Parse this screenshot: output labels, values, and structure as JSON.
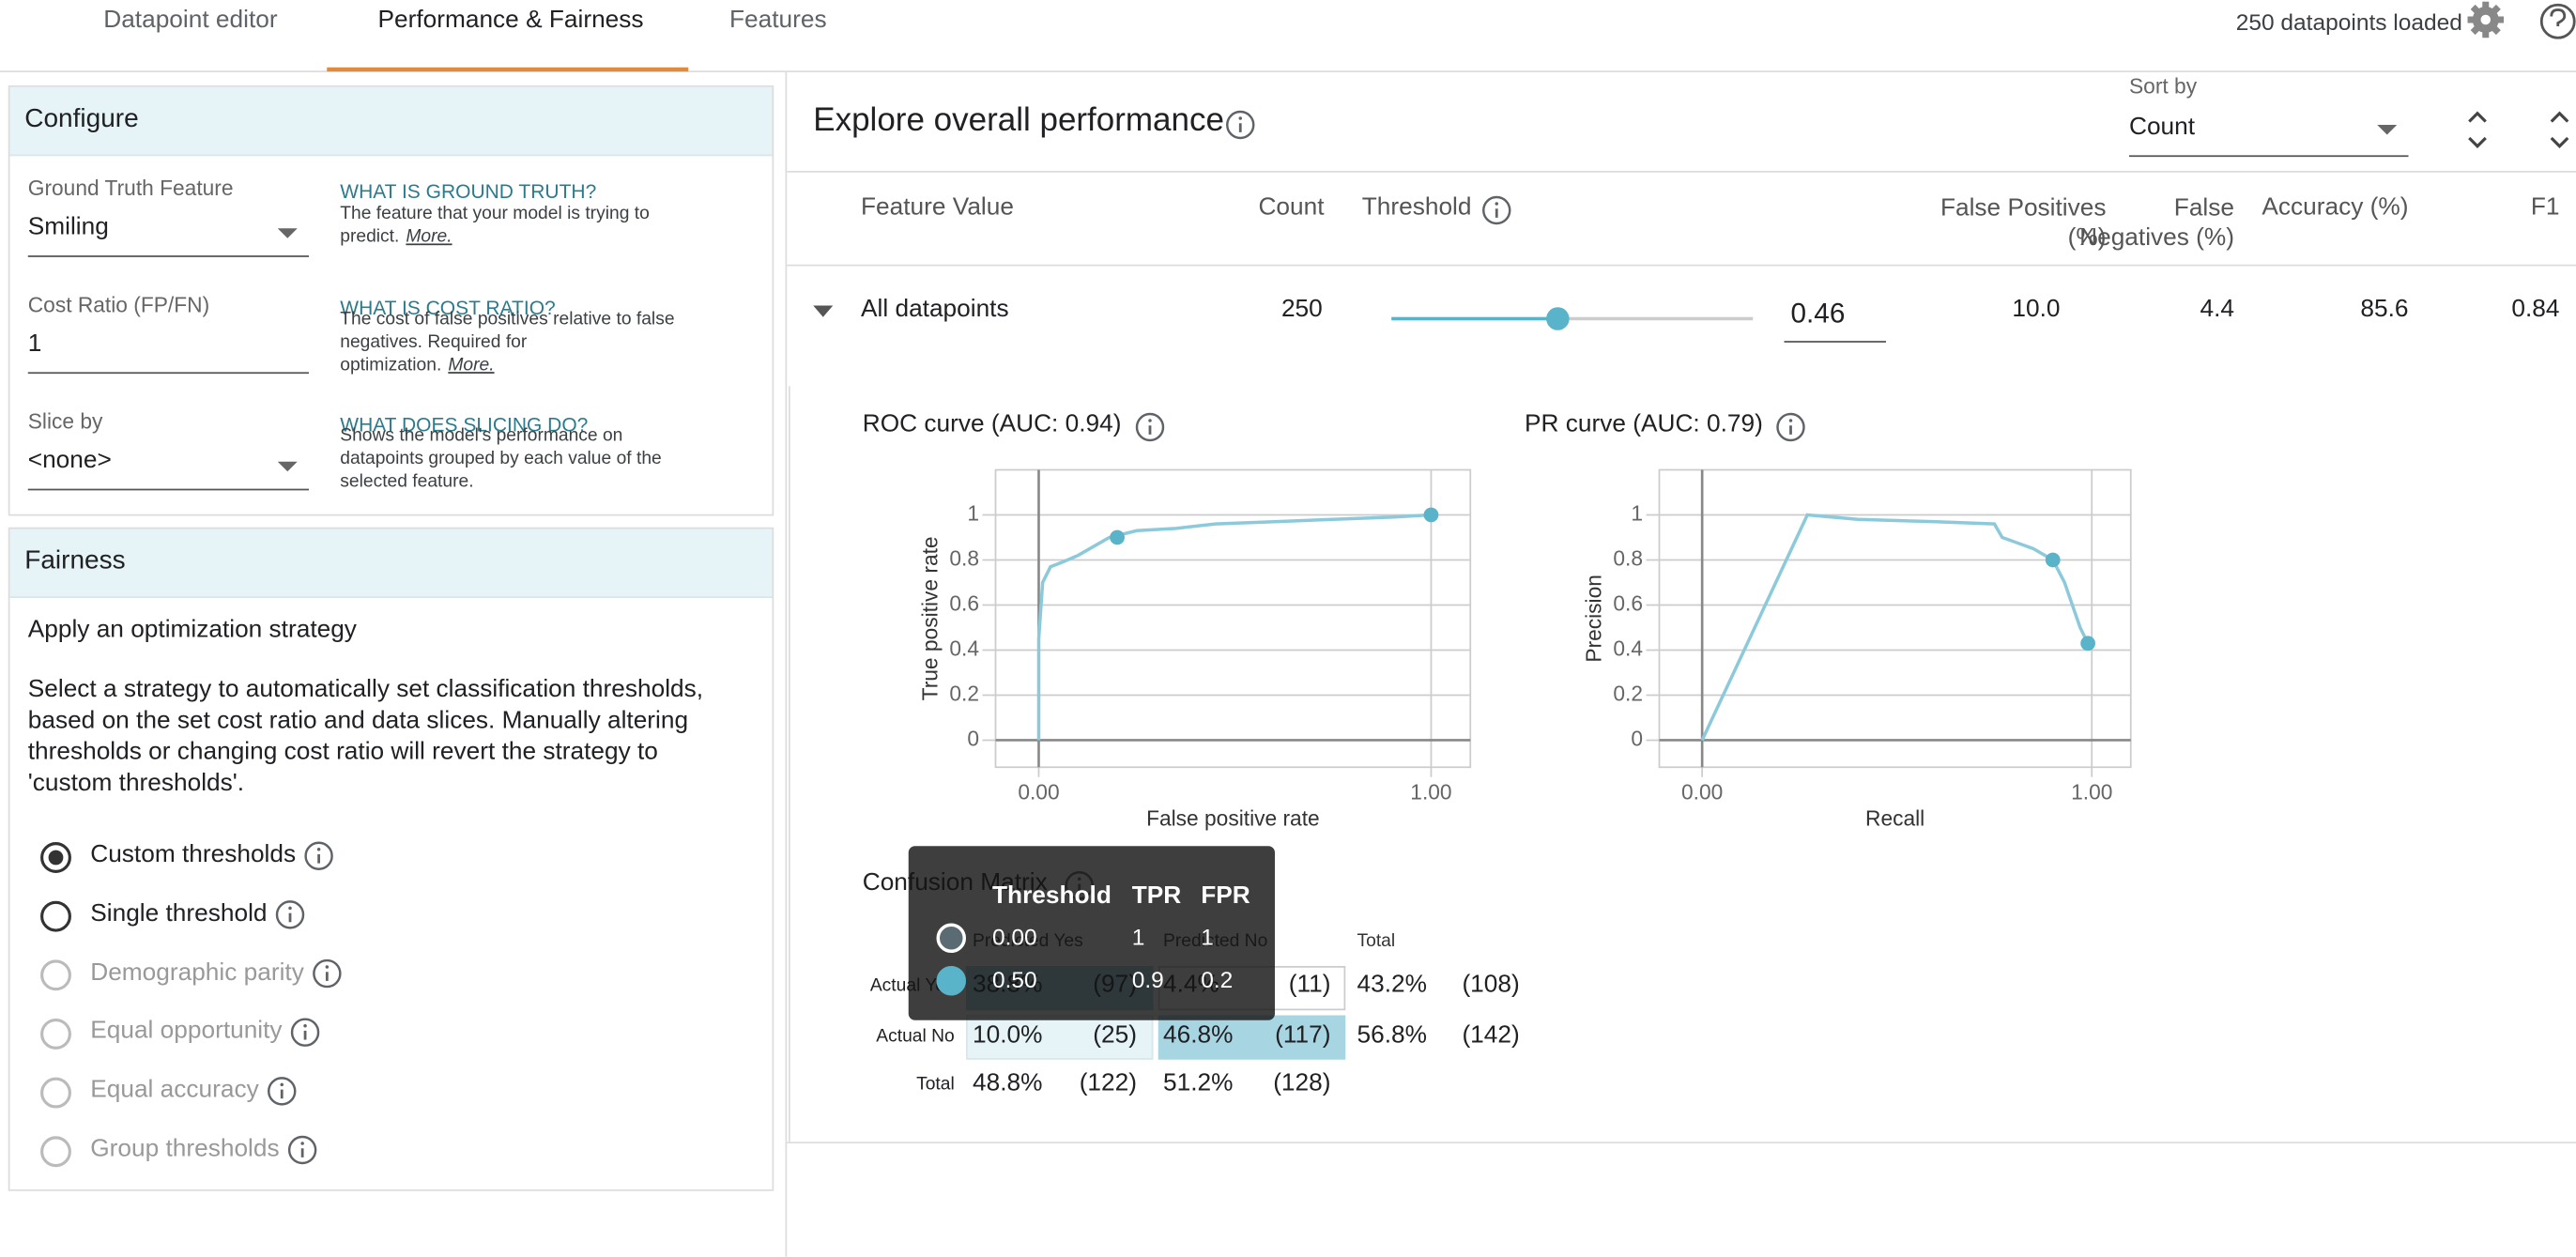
{
  "tabs": [
    "Datapoint editor",
    "Performance & Fairness",
    "Features"
  ],
  "status": "250 datapoints loaded",
  "configure": {
    "title": "Configure",
    "fields": [
      {
        "label": "Ground Truth Feature",
        "value": "Smiling",
        "help_title": "WHAT IS GROUND TRUTH?",
        "help_text": "The feature that your model is trying to predict.",
        "help_link": "More."
      },
      {
        "label": "Cost Ratio (FP/FN)",
        "value": "1",
        "help_title": "WHAT IS COST RATIO?",
        "help_text": "The cost of false positives relative to false negatives. Required for optimization.",
        "help_link": "More."
      },
      {
        "label": "Slice by",
        "value": "<none>",
        "help_title": "WHAT DOES SLICING DO?",
        "help_text": "Shows the model's performance on datapoints grouped by each value of the selected feature."
      }
    ]
  },
  "fairness": {
    "title": "Fairness",
    "heading": "Apply an optimization strategy",
    "description": "Select a strategy to automatically set classification thresholds, based on the set cost ratio and data slices. Manually altering thresholds or changing cost ratio will revert the strategy to 'custom thresholds'.",
    "options": [
      {
        "label": "Custom thresholds",
        "state": "selected"
      },
      {
        "label": "Single threshold",
        "state": "enabled"
      },
      {
        "label": "Demographic parity",
        "state": "disabled"
      },
      {
        "label": "Equal opportunity",
        "state": "disabled"
      },
      {
        "label": "Equal accuracy",
        "state": "disabled"
      },
      {
        "label": "Group thresholds",
        "state": "disabled"
      }
    ]
  },
  "performance": {
    "title": "Explore overall performance",
    "sort_label": "Sort by",
    "sort_value": "Count",
    "columns": [
      "Feature Value",
      "Count",
      "Threshold",
      "False Positives (%)",
      "False Negatives (%)",
      "Accuracy (%)",
      "F1"
    ],
    "row": {
      "feature_value": "All datapoints",
      "count": 250,
      "threshold": 0.46,
      "false_positives": "10.0",
      "false_negatives": "4.4",
      "accuracy": "85.6",
      "f1": "0.84"
    }
  },
  "roc": {
    "title": "ROC curve (AUC: 0.94)",
    "x_label": "False positive rate",
    "y_label": "True positive rate",
    "xlim": [
      -0.11,
      1.1
    ],
    "ylim": [
      -0.12,
      1.2
    ],
    "xticks": [
      {
        "value": 0,
        "label": "0.00"
      },
      {
        "value": 1,
        "label": "1.00"
      }
    ],
    "yticks": [
      0,
      0.2,
      0.4,
      0.6,
      0.8,
      1
    ],
    "x": [
      0,
      0,
      0.01,
      0.03,
      0.06,
      0.1,
      0.15,
      0.18,
      0.25,
      0.35,
      0.45,
      0.6,
      0.75,
      0.9,
      1
    ],
    "y": [
      0,
      0.45,
      0.7,
      0.77,
      0.79,
      0.82,
      0.87,
      0.9,
      0.93,
      0.94,
      0.96,
      0.97,
      0.98,
      0.99,
      1
    ]
  },
  "pr": {
    "title": "PR curve (AUC: 0.79)",
    "x_label": "Recall",
    "y_label": "Precision",
    "xlim": [
      -0.11,
      1.1
    ],
    "ylim": [
      -0.12,
      1.2
    ],
    "xticks": [
      {
        "value": 0,
        "label": "0.00"
      },
      {
        "value": 1,
        "label": "1.00"
      }
    ],
    "yticks": [
      0,
      0.2,
      0.4,
      0.6,
      0.8,
      1
    ],
    "x": [
      0,
      0.27,
      0.4,
      0.6,
      0.75,
      0.77,
      0.85,
      0.9,
      0.93,
      0.95,
      0.97,
      0.99
    ],
    "y": [
      0,
      1,
      0.98,
      0.97,
      0.96,
      0.9,
      0.85,
      0.8,
      0.7,
      0.6,
      0.5,
      0.43
    ],
    "markers": {
      "x": [
        0.9,
        0.99
      ],
      "y": [
        0.8,
        0.43
      ]
    }
  },
  "confusion_matrix": {
    "title": "Confusion Matrix",
    "columns": [
      "Predicted Yes",
      "Predicted No",
      "Total"
    ],
    "rows": [
      {
        "label": "Actual Yes",
        "cells": [
          "38.8%",
          "(97)",
          "4.4%",
          "(11)",
          "43.2%",
          "(108)"
        ]
      },
      {
        "label": "Actual No",
        "cells": [
          "10.0%",
          "(25)",
          "46.8%",
          "(117)",
          "56.8%",
          "(142)"
        ]
      },
      {
        "label": "Total",
        "cells": [
          "48.8%",
          "(122)",
          "51.2%",
          "(128)"
        ]
      }
    ]
  },
  "tooltip": {
    "columns": [
      "Threshold",
      "TPR",
      "FPR"
    ],
    "rows": [
      {
        "threshold": "0.00",
        "tpr": 1,
        "fpr": 1
      },
      {
        "threshold": "0.50",
        "tpr": 0.9,
        "fpr": 0.2
      }
    ]
  }
}
